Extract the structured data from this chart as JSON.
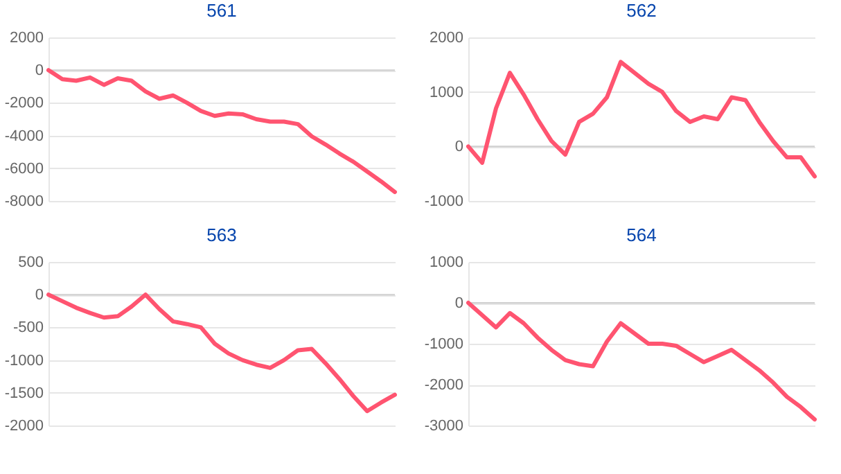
{
  "chart_data": [
    {
      "type": "line",
      "title": "561",
      "categories": [
        null,
        null,
        null,
        null,
        null,
        null,
        null,
        null,
        null,
        null,
        null,
        null,
        null,
        null,
        null,
        null,
        null,
        null,
        null,
        null,
        null,
        null,
        null,
        null,
        null,
        null
      ],
      "series": [
        {
          "color": "#ff5470",
          "values": [
            0,
            -550,
            -650,
            -450,
            -900,
            -500,
            -650,
            -1300,
            -1750,
            -1550,
            -2000,
            -2500,
            -2800,
            -2650,
            -2700,
            -3000,
            -3150,
            -3150,
            -3300,
            -4050,
            -4550,
            -5100,
            -5600,
            -6200,
            -6800,
            -7450
          ]
        }
      ],
      "ylim": [
        -8000,
        2000
      ],
      "yticks": [
        -8000,
        -6000,
        -4000,
        -2000,
        0,
        2000
      ],
      "grid": "y"
    },
    {
      "type": "line",
      "title": "562",
      "categories": [
        null,
        null,
        null,
        null,
        null,
        null,
        null,
        null,
        null,
        null,
        null,
        null,
        null,
        null,
        null,
        null,
        null,
        null,
        null,
        null,
        null,
        null,
        null,
        null,
        null,
        null
      ],
      "series": [
        {
          "color": "#ff5470",
          "values": [
            0,
            -300,
            700,
            1350,
            950,
            500,
            100,
            -150,
            450,
            600,
            900,
            1550,
            1350,
            1150,
            1000,
            650,
            450,
            550,
            500,
            900,
            850,
            450,
            100,
            -200,
            -200,
            -550
          ]
        }
      ],
      "ylim": [
        -1000,
        2000
      ],
      "yticks": [
        -1000,
        0,
        1000,
        2000
      ],
      "grid": "y"
    },
    {
      "type": "line",
      "title": "563",
      "categories": [
        null,
        null,
        null,
        null,
        null,
        null,
        null,
        null,
        null,
        null,
        null,
        null,
        null,
        null,
        null,
        null,
        null,
        null,
        null,
        null,
        null,
        null,
        null,
        null,
        null,
        null
      ],
      "series": [
        {
          "color": "#ff5470",
          "values": [
            0,
            -100,
            -200,
            -280,
            -350,
            -330,
            -180,
            0,
            -220,
            -410,
            -450,
            -500,
            -750,
            -900,
            -1000,
            -1070,
            -1120,
            -1000,
            -850,
            -830,
            -1050,
            -1290,
            -1550,
            -1780,
            -1650,
            -1530
          ]
        }
      ],
      "ylim": [
        -2000,
        500
      ],
      "yticks": [
        -2000,
        -1500,
        -1000,
        -500,
        0,
        500
      ],
      "grid": "y"
    },
    {
      "type": "line",
      "title": "564",
      "categories": [
        null,
        null,
        null,
        null,
        null,
        null,
        null,
        null,
        null,
        null,
        null,
        null,
        null,
        null,
        null,
        null,
        null,
        null,
        null,
        null,
        null,
        null,
        null,
        null,
        null,
        null
      ],
      "series": [
        {
          "color": "#ff5470",
          "values": [
            0,
            -300,
            -600,
            -250,
            -500,
            -850,
            -1150,
            -1400,
            -1500,
            -1550,
            -950,
            -500,
            -750,
            -1000,
            -1000,
            -1050,
            -1250,
            -1450,
            -1300,
            -1150,
            -1400,
            -1650,
            -1950,
            -2300,
            -2550,
            -2850
          ]
        }
      ],
      "ylim": [
        -3000,
        1000
      ],
      "yticks": [
        -3000,
        -2000,
        -1000,
        0,
        1000
      ],
      "grid": "y"
    }
  ]
}
